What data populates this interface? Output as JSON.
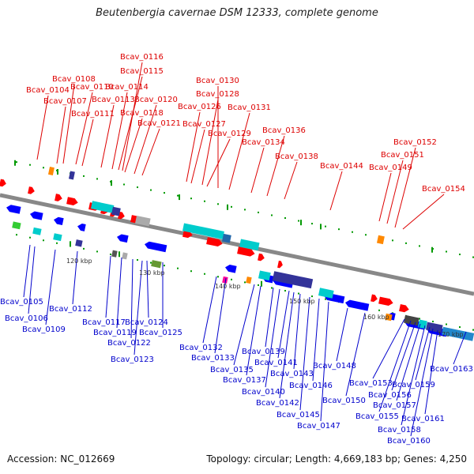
{
  "header": {
    "title": "Beutenbergia cavernae DSM 12333, complete genome"
  },
  "footer": {
    "accession": "Accession: NC_012669",
    "summary": "Topology: circular; Length: 4,669,183 bp; Genes: 4,250"
  },
  "colors": {
    "backbone": "#888888",
    "forward_label": "#dd0000",
    "reverse_label": "#0000cc",
    "forward_gene": "#ff0000",
    "reverse_gene": "#0000ff",
    "tick": "#009900"
  },
  "scale_labels": [
    "120 kbp",
    "130 kbp",
    "140 kbp",
    "150 kbp",
    "160 kbp",
    "170 kbp"
  ],
  "forward_labels": [
    "Bcav_0104",
    "Bcav_0107",
    "Bcav_0108",
    "Bcav_0110",
    "Bcav_0111",
    "Bcav_0113",
    "Bcav_0114",
    "Bcav_0115",
    "Bcav_0116",
    "Bcav_0118",
    "Bcav_0120",
    "Bcav_0121",
    "Bcav_0126",
    "Bcav_0127",
    "Bcav_0128",
    "Bcav_0129",
    "Bcav_0130",
    "Bcav_0131",
    "Bcav_0134",
    "Bcav_0136",
    "Bcav_0138",
    "Bcav_0144",
    "Bcav_0149",
    "Bcav_0151",
    "Bcav_0152",
    "Bcav_0154"
  ],
  "reverse_labels": [
    "Bcav_0105",
    "Bcav_0106",
    "Bcav_0109",
    "Bcav_0112",
    "Bcav_0117",
    "Bcav_0119",
    "Bcav_0122",
    "Bcav_0123",
    "Bcav_0124",
    "Bcav_0125",
    "Bcav_0132",
    "Bcav_0133",
    "Bcav_0135",
    "Bcav_0137",
    "Bcav_0139",
    "Bcav_0140",
    "Bcav_0141",
    "Bcav_0142",
    "Bcav_0143",
    "Bcav_0145",
    "Bcav_0146",
    "Bcav_0147",
    "Bcav_0148",
    "Bcav_0150",
    "Bcav_0153",
    "Bcav_0155",
    "Bcav_0156",
    "Bcav_0157",
    "Bcav_0158",
    "Bcav_0159",
    "Bcav_0160",
    "Bcav_0161",
    "Bcav_0163"
  ]
}
